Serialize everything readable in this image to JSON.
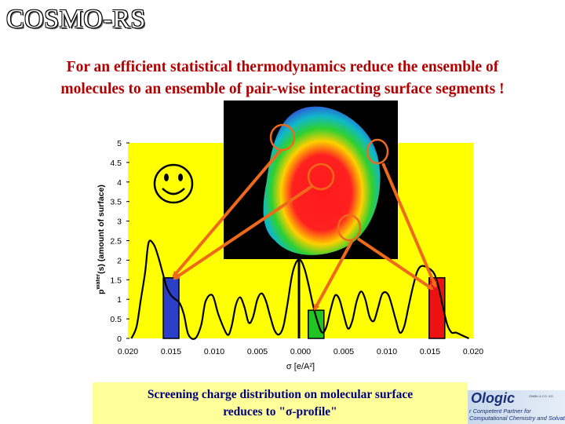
{
  "slide": {
    "title": "COSMO-RS",
    "subtitle_line1": "For an efficient statistical thermodynamics reduce the ensemble of",
    "subtitle_line2": "molecules to an ensemble of pair-wise interacting surface segments !",
    "caption_line1": "Screening charge distribution on molecular surface",
    "caption_line2": "reduces to \"σ-profile\"",
    "smiley": "☺"
  },
  "logo": {
    "name": "Ologic",
    "small_text": "GMBH & CO. KG",
    "tagline_line1": "r Competent Partner for",
    "tagline_line2": "Computational Chemistry and Solvation"
  },
  "chart_data": {
    "type": "line",
    "xlabel": "σ [e/A²]",
    "ylabel": "p^water(s) (amount of surface)",
    "ylim": [
      0,
      5
    ],
    "y_ticks": [
      "0",
      "0.5",
      "1",
      "1.5",
      "2",
      "2.5",
      "3",
      "3.5",
      "4",
      "4.5",
      "5"
    ],
    "x_ticks": [
      {
        "value": -0.02,
        "label": "0.020"
      },
      {
        "value": -0.015,
        "label": "0.015"
      },
      {
        "value": -0.01,
        "label": "0.010"
      },
      {
        "value": -0.005,
        "label": "0.005"
      },
      {
        "value": 0.0,
        "label": "0.000"
      },
      {
        "value": 0.005,
        "label": "0.005"
      },
      {
        "value": 0.01,
        "label": "0.010"
      },
      {
        "value": 0.015,
        "label": "0.015"
      },
      {
        "value": 0.02,
        "label": "0.020"
      }
    ],
    "xlim": [
      -0.02,
      0.02
    ],
    "series": [
      {
        "x": [
          -0.0196,
          -0.019,
          -0.0185,
          -0.018,
          -0.0176,
          -0.017,
          -0.0165,
          -0.016,
          -0.0155,
          -0.015,
          -0.0145,
          -0.014,
          -0.0135,
          -0.013,
          -0.0122,
          -0.0115,
          -0.011,
          -0.0102,
          -0.0095,
          -0.0085,
          -0.008,
          -0.0075,
          -0.007,
          -0.0065,
          -0.006,
          -0.0055,
          -0.005,
          -0.0045,
          -0.004,
          -0.0035,
          -0.003,
          -0.0025,
          -0.002,
          -0.0015,
          -0.001,
          -0.0005,
          0.0,
          0.0005,
          0.001,
          0.0015,
          0.002,
          0.0025,
          0.003,
          0.0035,
          0.004,
          0.0045,
          0.005,
          0.0055,
          0.006,
          0.0065,
          0.007,
          0.0075,
          0.008,
          0.0085,
          0.009,
          0.0095,
          0.0102,
          0.011,
          0.0115,
          0.012,
          0.0125,
          0.013,
          0.0135,
          0.014,
          0.0148,
          0.0155,
          0.016,
          0.0165,
          0.017,
          0.0175,
          0.018,
          0.0185,
          0.0195
        ],
        "values": [
          0.0,
          0.3,
          1.0,
          1.7,
          2.45,
          2.4,
          2.1,
          1.7,
          1.3,
          1.1,
          1.0,
          0.9,
          0.6,
          0.1,
          0.0,
          0.35,
          0.95,
          1.1,
          0.6,
          0.1,
          0.3,
          0.85,
          1.05,
          0.8,
          0.4,
          0.55,
          1.0,
          1.15,
          0.95,
          0.55,
          0.2,
          0.1,
          0.3,
          0.9,
          1.6,
          1.95,
          2.0,
          1.75,
          1.3,
          0.8,
          0.4,
          0.15,
          0.3,
          0.75,
          1.1,
          1.0,
          0.6,
          0.25,
          0.45,
          0.95,
          1.2,
          1.0,
          0.55,
          0.45,
          0.8,
          1.15,
          1.1,
          0.5,
          0.15,
          0.3,
          0.8,
          1.3,
          1.7,
          1.85,
          1.8,
          1.65,
          1.3,
          0.8,
          0.35,
          0.15,
          0.15,
          0.1,
          0.0
        ]
      }
    ],
    "bars": [
      {
        "x": -0.015,
        "height": 1.55,
        "color": "#2b3fc8"
      },
      {
        "x": 0.0018,
        "height": 0.72,
        "color": "#22c422"
      },
      {
        "x": 0.0158,
        "height": 1.55,
        "color": "#ee1111"
      }
    ],
    "colors": {
      "background": "#ffff00",
      "curve": "#000000",
      "arrow": "#ee6a1a",
      "molecule_panel": "#000000"
    }
  }
}
